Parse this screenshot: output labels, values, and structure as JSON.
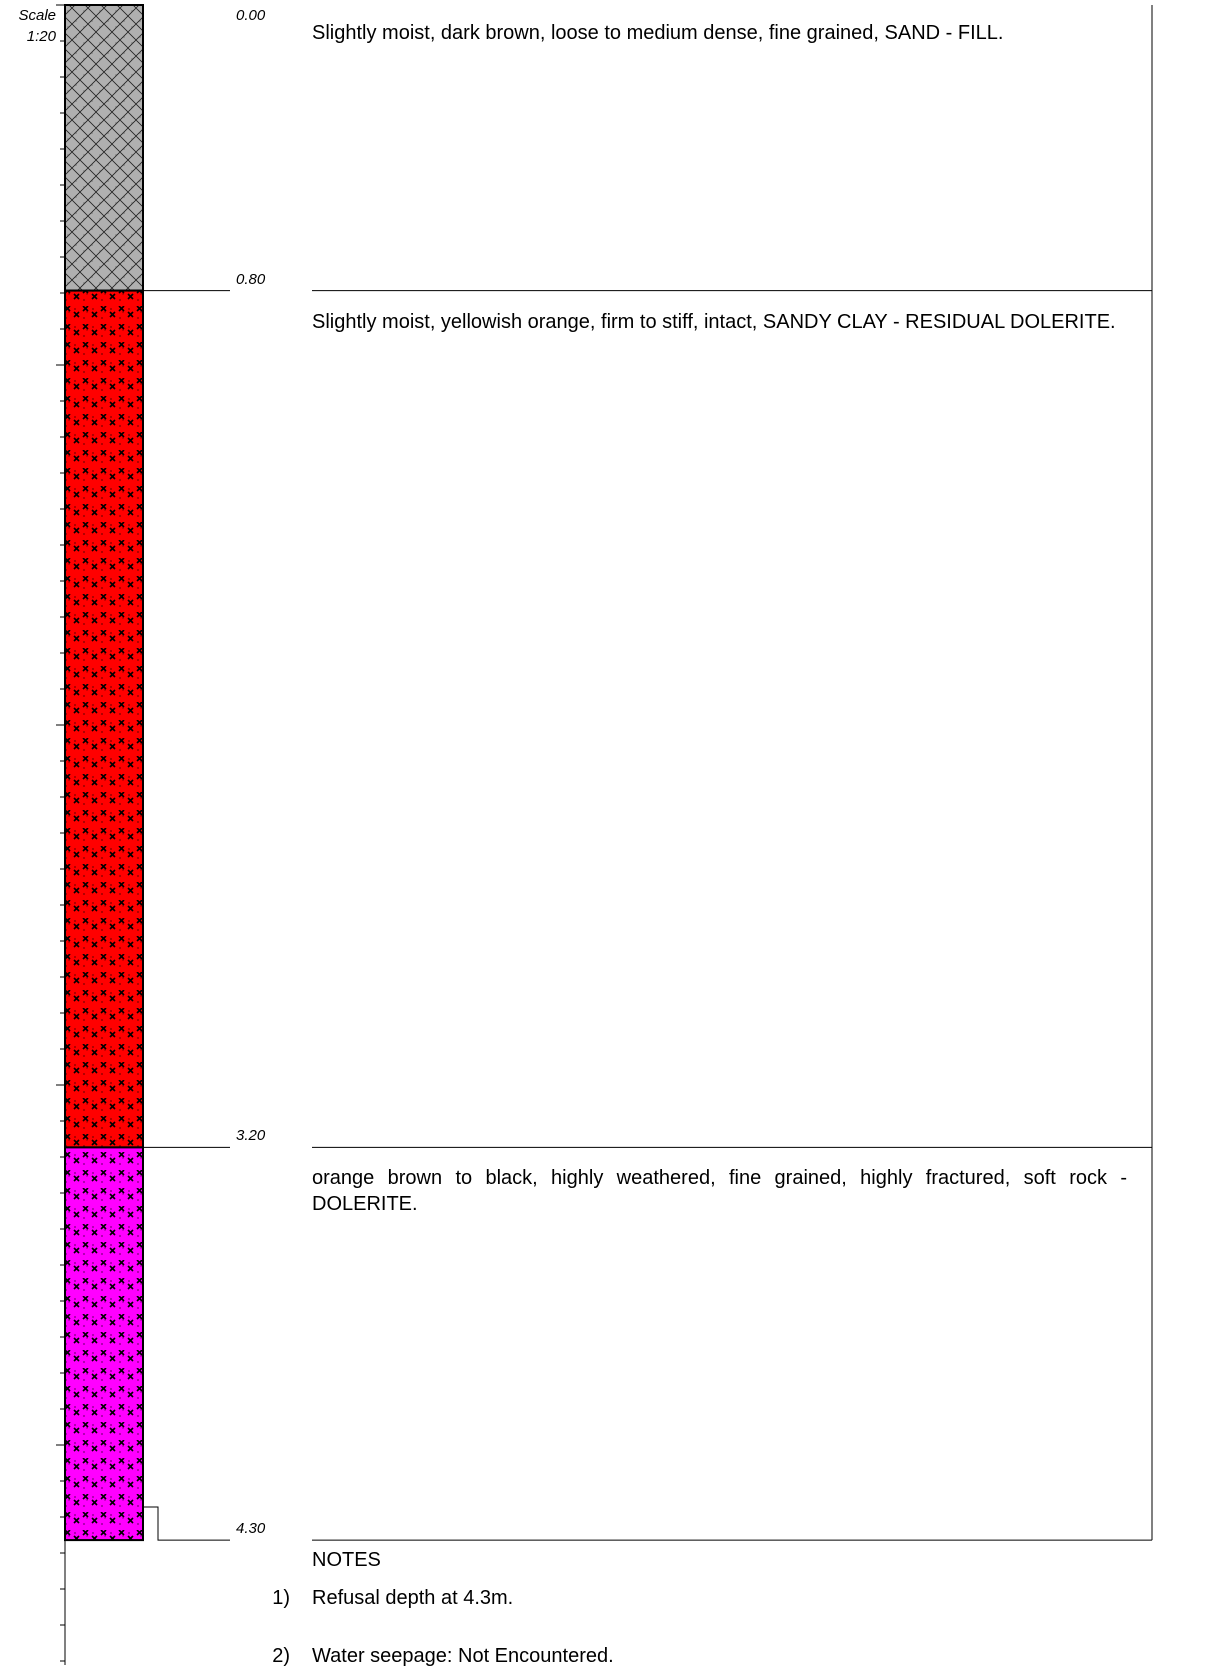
{
  "scale": {
    "label": "Scale",
    "ratio": "1:20"
  },
  "layers": [
    {
      "top_depth": "0.00",
      "top_m": 0.0,
      "bottom_m": 0.8,
      "description": "Slightly  moist,  dark brown, loose to medium dense, fine grained, SAND - FILL.",
      "pattern": "crosshatch-grey",
      "fill": "#b0b0b0"
    },
    {
      "top_depth": "0.80",
      "top_m": 0.8,
      "bottom_m": 3.2,
      "description": "Slightly  moist, yellowish orange, firm to stiff, intact, SANDY CLAY - RESIDUAL DOLERITE.",
      "pattern": "crosses-red",
      "fill": "#ff0000"
    },
    {
      "top_depth": "3.20",
      "top_m": 3.2,
      "bottom_m": 4.3,
      "description": "orange  brown  to  black,  highly weathered, fine grained, highly fractured, soft rock - DOLERITE.",
      "pattern": "crosses-magenta",
      "fill": "#ff00ff"
    }
  ],
  "end_depth": "4.30",
  "end_m": 4.3,
  "notes": {
    "title": "NOTES",
    "items": [
      {
        "num": "1)",
        "text": "Refusal depth at 4.3m."
      },
      {
        "num": "2)",
        "text": "Water seepage: Not Encountered."
      }
    ]
  }
}
